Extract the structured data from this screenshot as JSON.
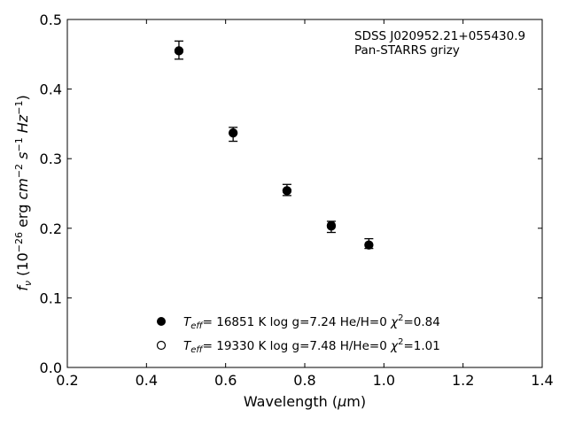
{
  "chart_data": {
    "type": "scatter",
    "title": "",
    "annotation": {
      "line1": "SDSS J020952.21+055430.9",
      "line2": "Pan-STARRS grizy"
    },
    "xlabel": "Wavelength (μm)",
    "ylabel": "f_ν (10^-26 erg cm^-2 s^-1 Hz^-1)",
    "xlim": [
      0.2,
      1.4
    ],
    "ylim": [
      0.0,
      0.5
    ],
    "xticks": [
      "0.2",
      "0.4",
      "0.6",
      "0.8",
      "1.0",
      "1.2",
      "1.4"
    ],
    "yticks": [
      "0.0",
      "0.1",
      "0.2",
      "0.3",
      "0.4",
      "0.5"
    ],
    "grid": false,
    "legend_position": "bottom-center",
    "observed": {
      "name": "Pan-STARRS grizy",
      "points": [
        {
          "x": 0.482,
          "y": 0.456,
          "err": 0.013
        },
        {
          "x": 0.619,
          "y": 0.335,
          "err": 0.01
        },
        {
          "x": 0.755,
          "y": 0.255,
          "err": 0.008
        },
        {
          "x": 0.867,
          "y": 0.202,
          "err": 0.008
        },
        {
          "x": 0.962,
          "y": 0.178,
          "err": 0.007
        }
      ]
    },
    "models": [
      {
        "marker": "filled",
        "points": [
          {
            "x": 0.482,
            "y": 0.455
          },
          {
            "x": 0.619,
            "y": 0.337
          },
          {
            "x": 0.755,
            "y": 0.254
          },
          {
            "x": 0.867,
            "y": 0.204
          },
          {
            "x": 0.962,
            "y": 0.176
          }
        ],
        "legend": {
          "teff": "= 16851 K",
          "logg": "log g=7.24",
          "comp": "He/H=0",
          "chi": "=0.84"
        }
      },
      {
        "marker": "open",
        "points": [
          {
            "x": 0.482,
            "y": 0.455
          },
          {
            "x": 0.619,
            "y": 0.337
          },
          {
            "x": 0.755,
            "y": 0.254
          },
          {
            "x": 0.867,
            "y": 0.203
          },
          {
            "x": 0.962,
            "y": 0.176
          }
        ],
        "legend": {
          "teff": "= 19330 K",
          "logg": "log g=7.48",
          "comp": "H/He=0",
          "chi": "=1.01"
        }
      }
    ]
  }
}
